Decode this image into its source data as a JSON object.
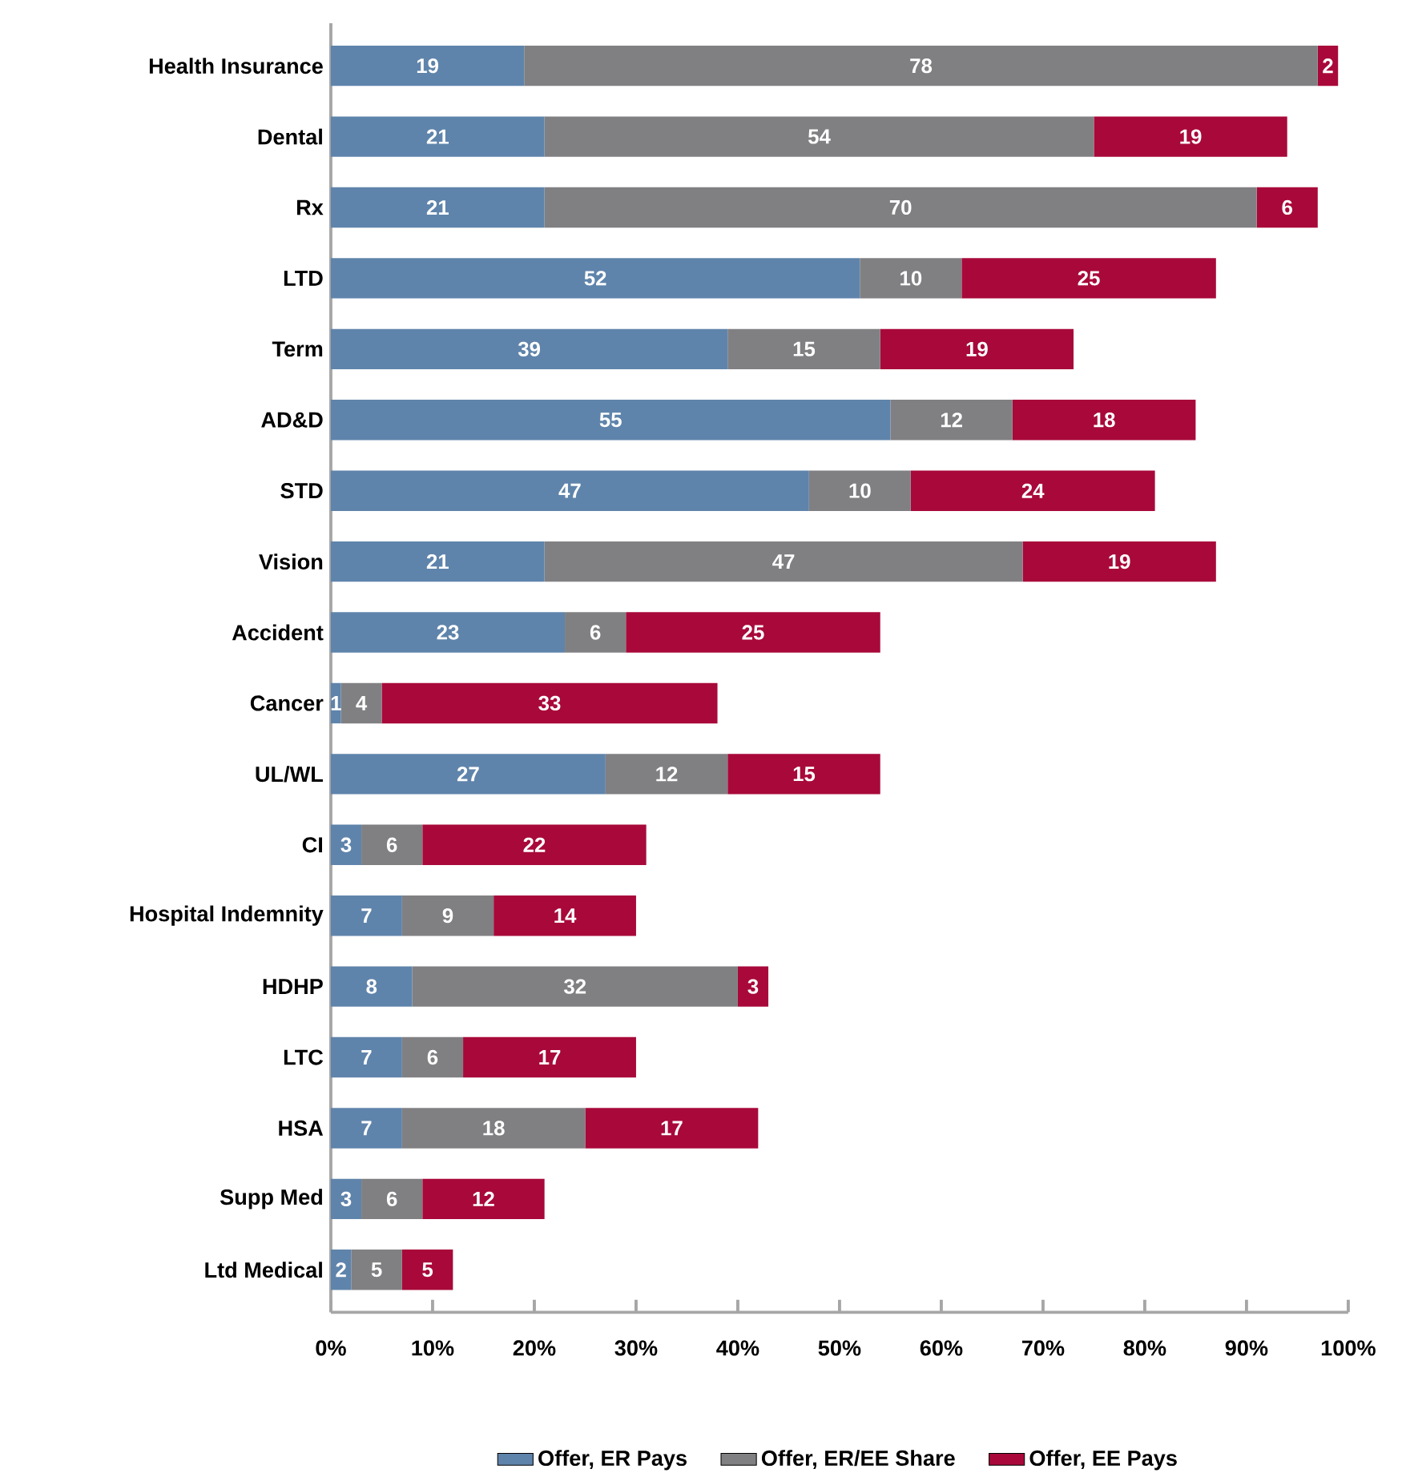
{
  "chart_data": {
    "type": "bar",
    "orientation": "horizontal",
    "stacked": true,
    "data_labels": true,
    "legend": "bottom",
    "grid": false,
    "categories": [
      "Health Insurance",
      "Dental",
      "Rx",
      "LTD",
      "Term",
      "AD&D",
      "STD",
      "Vision",
      "Accident",
      "Cancer",
      "UL/WL",
      "CI",
      "Hospital Indemnity",
      "HDHP",
      "LTC",
      "HSA",
      "Supp Med",
      "Ltd Medical"
    ],
    "series": [
      {
        "name": "Offer, ER Pays",
        "color": "#5f84ab",
        "values": [
          19,
          21,
          21,
          52,
          39,
          55,
          47,
          21,
          23,
          1,
          27,
          3,
          7,
          8,
          7,
          7,
          3,
          2
        ]
      },
      {
        "name": "Offer, ER/EE Share",
        "color": "#808083",
        "values": [
          78,
          54,
          70,
          10,
          15,
          12,
          10,
          47,
          6,
          4,
          12,
          6,
          9,
          32,
          6,
          18,
          6,
          5
        ]
      },
      {
        "name": "Offer, EE Pays",
        "color": "#a8093a",
        "values": [
          2,
          19,
          6,
          25,
          19,
          18,
          24,
          19,
          25,
          33,
          15,
          22,
          14,
          3,
          17,
          17,
          12,
          5
        ]
      }
    ],
    "xlim": [
      0,
      100
    ],
    "xticks": [
      {
        "value": 0,
        "label": "0%"
      },
      {
        "value": 10,
        "label": "10%"
      },
      {
        "value": 20,
        "label": "20%"
      },
      {
        "value": 30,
        "label": "30%"
      },
      {
        "value": 40,
        "label": "40%"
      },
      {
        "value": 50,
        "label": "50%"
      },
      {
        "value": 60,
        "label": "60%"
      },
      {
        "value": 70,
        "label": "70%"
      },
      {
        "value": 80,
        "label": "80%"
      },
      {
        "value": 90,
        "label": "90%"
      },
      {
        "value": 100,
        "label": "100%"
      }
    ]
  }
}
